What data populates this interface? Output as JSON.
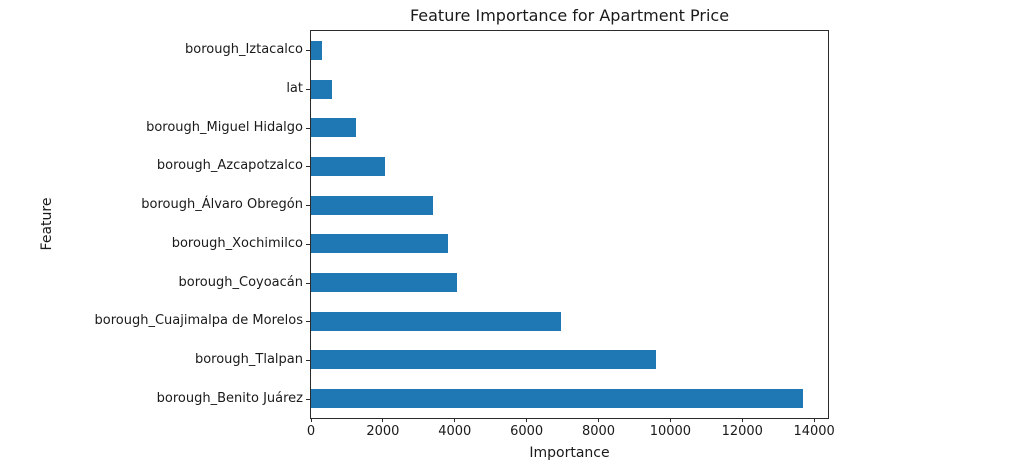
{
  "chart_data": {
    "type": "bar",
    "orientation": "horizontal",
    "title": "Feature Importance for Apartment Price",
    "xlabel": "Importance",
    "ylabel": "Feature",
    "categories": [
      "borough_Iztacalco",
      "lat",
      "borough_Miguel Hidalgo",
      "borough_Azcapotzalco",
      "borough_Álvaro Obregón",
      "borough_Xochimilco",
      "borough_Coyoacán",
      "borough_Cuajimalpa de Morelos",
      "borough_Tlalpan",
      "borough_Benito Juárez"
    ],
    "category_order": "top_to_bottom",
    "values": [
      310,
      575,
      1250,
      2060,
      3400,
      3820,
      4060,
      6950,
      9600,
      13700
    ],
    "x_ticks": [
      0,
      2000,
      4000,
      6000,
      8000,
      10000,
      12000,
      14000
    ],
    "x_tick_labels": [
      "0",
      "2000",
      "4000",
      "6000",
      "8000",
      "10000",
      "12000",
      "14000"
    ],
    "xlim": [
      0,
      14385
    ],
    "bar_color": "#1f77b4",
    "spine_color": "#2b2b2b",
    "grid": false,
    "legend": false
  }
}
